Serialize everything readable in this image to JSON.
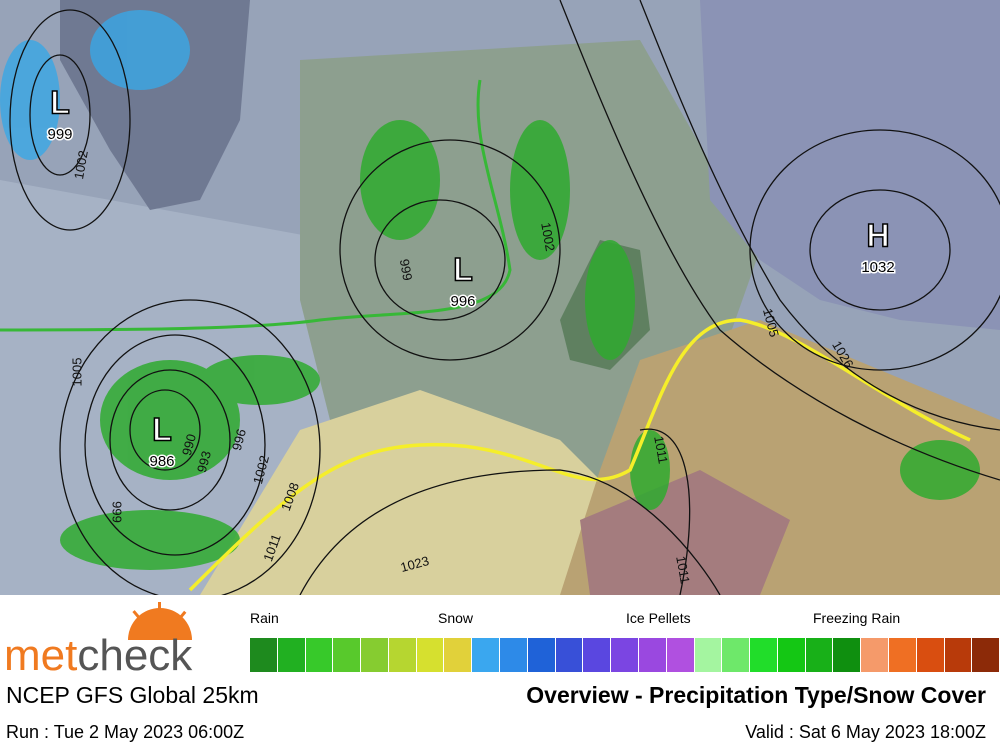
{
  "map": {
    "centers": [
      {
        "letter": "L",
        "value": "999"
      },
      {
        "letter": "L",
        "value": "996"
      },
      {
        "letter": "L",
        "value": "986"
      },
      {
        "letter": "H",
        "value": "1032"
      }
    ],
    "isobar_labels": [
      "1002",
      "999",
      "1002",
      "1005",
      "990",
      "993",
      "996",
      "1002",
      "1008",
      "1011",
      "999",
      "1023",
      "1026",
      "1011",
      "1011",
      "1005"
    ]
  },
  "legend": {
    "categories": [
      "Rain",
      "Snow",
      "Ice Pellets",
      "Freezing Rain"
    ]
  },
  "footer": {
    "logo": [
      "met",
      "check"
    ],
    "model": "NCEP GFS Global 25km",
    "title": "Overview - Precipitation Type/Snow Cover",
    "run": "Run : Tue 2 May 2023 06:00Z",
    "valid": "Valid : Sat 6 May 2023 18:00Z"
  }
}
